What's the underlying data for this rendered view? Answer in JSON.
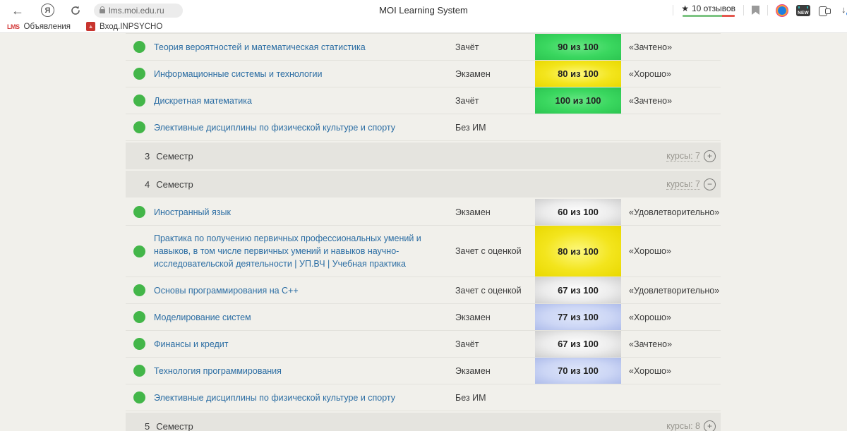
{
  "theme": {
    "page_bg": "#f1f0eb",
    "band_bg": "#e5e4df",
    "row_border": "#e3e2dc",
    "link_color": "#2b6da3",
    "dot_color": "#43b649"
  },
  "browser": {
    "url": "lms.moi.edu.ru",
    "page_title": "MOI Learning System",
    "yandex_glyph": "Я",
    "back_glyph": "←",
    "download_glyph": "↓",
    "reviews": {
      "star": "★",
      "label": "10 отзывов",
      "green": "#7dc483",
      "red": "#e4584e",
      "green_pct": 76
    },
    "new_badge_label": "NEW"
  },
  "bookmarks_bar": {
    "items": [
      {
        "icon_text": "LMS",
        "label": "Объявления"
      },
      {
        "icon_text": "▲",
        "label": "Вход.INPSYCHO"
      }
    ]
  },
  "grades_table": {
    "badge_styles": {
      "green": {
        "from": "#66e683",
        "mid": "#3ad75f",
        "to": "#2cc551"
      },
      "yellow": {
        "from": "#fdf87e",
        "mid": "#f3e51d",
        "to": "#e9d800"
      },
      "gray": {
        "from": "#ffffff",
        "mid": "#ececec",
        "to": "#cfcfcf"
      },
      "blue": {
        "from": "#dee6fa",
        "mid": "#ccd6f5",
        "to": "#aebcea"
      }
    },
    "rows": [
      {
        "kind": "course",
        "name": "Теория вероятностей и математическая статистика",
        "control": "Зачёт",
        "score": "90 из 100",
        "badge": "green",
        "grade": "«Зачтено»"
      },
      {
        "kind": "course",
        "name": "Информационные системы и технологии",
        "control": "Экзамен",
        "score": "80 из 100",
        "badge": "yellow",
        "grade": "«Хорошо»"
      },
      {
        "kind": "course",
        "name": "Дискретная математика",
        "control": "Зачёт",
        "score": "100 из 100",
        "badge": "green",
        "grade": "«Зачтено»"
      },
      {
        "kind": "course",
        "name": "Элективные дисциплины по физической культуре и спорту",
        "control": "Без ИМ",
        "score": "",
        "badge": "",
        "grade": ""
      },
      {
        "kind": "semester",
        "num": "3",
        "label": "Семестр",
        "courses_label": "курсы: 7",
        "toggle_glyph": "+"
      },
      {
        "kind": "semester",
        "num": "4",
        "label": "Семестр",
        "courses_label": "курсы: 7",
        "toggle_glyph": "−"
      },
      {
        "kind": "course",
        "name": "Иностранный язык",
        "control": "Экзамен",
        "score": "60 из 100",
        "badge": "gray",
        "grade": "«Удовлетворительно»"
      },
      {
        "kind": "course",
        "name": "Практика по получению первичных профессиональных умений и навыков, в том числе первичных умений и навыков научно-исследовательской деятельности | УП.ВЧ | Учебная практика",
        "control": "Зачет с оценкой",
        "score": "80 из 100",
        "badge": "yellow",
        "grade": "«Хорошо»"
      },
      {
        "kind": "course",
        "name": "Основы программирования на C++",
        "control": "Зачет с оценкой",
        "score": "67 из 100",
        "badge": "gray",
        "grade": "«Удовлетворительно»"
      },
      {
        "kind": "course",
        "name": "Моделирование систем",
        "control": "Экзамен",
        "score": "77 из 100",
        "badge": "blue",
        "grade": "«Хорошо»"
      },
      {
        "kind": "course",
        "name": "Финансы и кредит",
        "control": "Зачёт",
        "score": "67 из 100",
        "badge": "gray",
        "grade": "«Зачтено»"
      },
      {
        "kind": "course",
        "name": "Технология программирования",
        "control": "Экзамен",
        "score": "70 из 100",
        "badge": "blue",
        "grade": "«Хорошо»"
      },
      {
        "kind": "course",
        "name": "Элективные дисциплины по физической культуре и спорту",
        "control": "Без ИМ",
        "score": "",
        "badge": "",
        "grade": ""
      },
      {
        "kind": "semester",
        "num": "5",
        "label": "Семестр",
        "courses_label": "курсы: 8",
        "toggle_glyph": "+"
      }
    ]
  }
}
